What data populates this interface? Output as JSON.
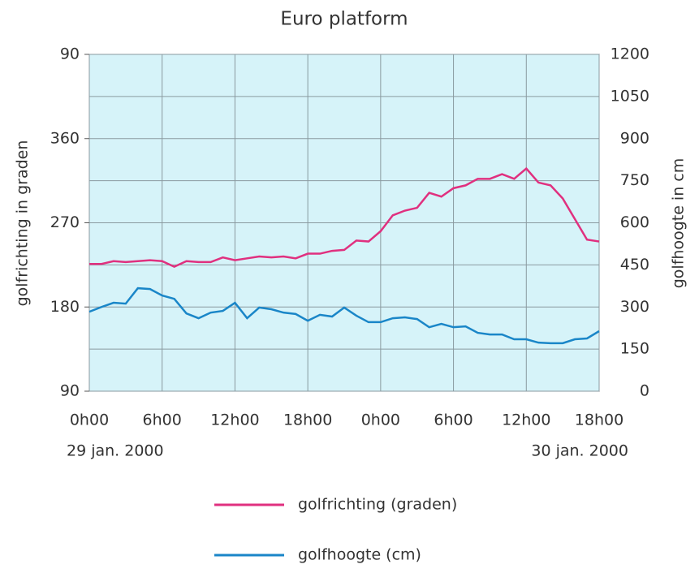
{
  "chart_data": {
    "type": "line",
    "title": "Euro platform",
    "ylabel": "golfrichting in graden",
    "y2label": "golfhoogte in cm",
    "annotations": [
      "29 jan. 2000",
      "30 jan. 2000"
    ],
    "x": [
      0,
      1,
      2,
      3,
      4,
      5,
      6,
      7,
      8,
      9,
      10,
      11,
      12,
      13,
      14,
      15,
      16,
      17,
      18,
      19,
      20,
      21,
      22,
      23,
      24,
      25,
      26,
      27,
      28,
      29,
      30,
      31,
      32,
      33,
      34,
      35,
      36,
      37,
      38,
      39,
      40,
      41,
      42
    ],
    "xlim": [
      0,
      42
    ],
    "xticks": [
      {
        "value": 0,
        "label": "0h00"
      },
      {
        "value": 6,
        "label": "6h00"
      },
      {
        "value": 12,
        "label": "12h00"
      },
      {
        "value": 18,
        "label": "18h00"
      },
      {
        "value": 24,
        "label": "0h00"
      },
      {
        "value": 30,
        "label": "6h00"
      },
      {
        "value": 36,
        "label": "12h00"
      },
      {
        "value": 42,
        "label": "18h00"
      }
    ],
    "ylim": [
      90,
      450
    ],
    "yticks": [
      90,
      180,
      270,
      360,
      {
        "value": 450,
        "label": "90"
      }
    ],
    "y2lim": [
      0,
      1200
    ],
    "y2ticks": [
      0,
      150,
      300,
      450,
      600,
      750,
      900,
      1050,
      1200
    ],
    "grid": true,
    "series": [
      {
        "name": "golfrichting (graden)",
        "color": "#e0307f",
        "axis": "y",
        "values": [
          226,
          226,
          229,
          228,
          229,
          230,
          229,
          223,
          229,
          228,
          228,
          233,
          230,
          232,
          234,
          233,
          234,
          232,
          237,
          237,
          240,
          241,
          251,
          250,
          261,
          278,
          283,
          286,
          302,
          298,
          307,
          310,
          317,
          317,
          322,
          317,
          328,
          313,
          310,
          296,
          274,
          252,
          250
        ]
      },
      {
        "name": "golfhoogte (cm)",
        "color": "#1a86c8",
        "axis": "y2",
        "values": [
          283,
          300,
          315,
          312,
          367,
          364,
          341,
          329,
          277,
          260,
          280,
          286,
          315,
          260,
          298,
          292,
          280,
          275,
          251,
          272,
          266,
          298,
          269,
          246,
          246,
          260,
          263,
          257,
          228,
          240,
          228,
          231,
          208,
          202,
          202,
          185,
          185,
          173,
          171,
          171,
          185,
          188,
          214
        ]
      }
    ]
  }
}
